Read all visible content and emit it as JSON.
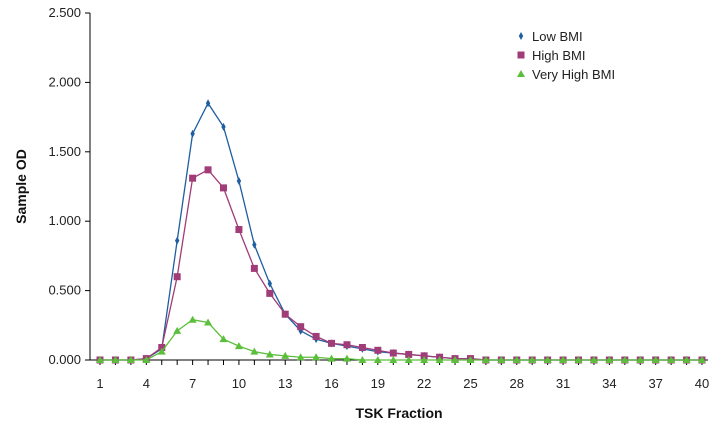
{
  "chart_data": {
    "type": "line",
    "title": "",
    "xlabel": "TSK Fraction",
    "ylabel": "Sample OD",
    "x": [
      1,
      2,
      3,
      4,
      5,
      6,
      7,
      8,
      9,
      10,
      11,
      12,
      13,
      14,
      15,
      16,
      17,
      18,
      19,
      20,
      21,
      22,
      23,
      24,
      25,
      26,
      27,
      28,
      29,
      30,
      31,
      32,
      33,
      34,
      35,
      36,
      37,
      38,
      39,
      40
    ],
    "x_tick_labels": [
      "1",
      "4",
      "7",
      "10",
      "13",
      "16",
      "19",
      "22",
      "25",
      "28",
      "31",
      "34",
      "37",
      "40"
    ],
    "y_tick_labels": [
      "0.000",
      "0.500",
      "1.000",
      "1.500",
      "2.000",
      "2.500"
    ],
    "ylim": [
      0,
      2.5
    ],
    "grid": false,
    "legend_position": "top-right",
    "series": [
      {
        "name": "Low BMI",
        "color": "#1f5fa0",
        "marker": "diamond",
        "values": [
          0.0,
          0.0,
          0.0,
          0.01,
          0.08,
          0.86,
          1.63,
          1.85,
          1.68,
          1.29,
          0.83,
          0.55,
          0.33,
          0.21,
          0.15,
          0.12,
          0.1,
          0.08,
          0.06,
          0.05,
          0.04,
          0.03,
          0.02,
          0.01,
          0.01,
          0.0,
          0.0,
          0.0,
          0.0,
          0.0,
          0.0,
          0.0,
          0.0,
          0.0,
          0.0,
          0.0,
          0.0,
          0.0,
          0.0,
          0.0
        ]
      },
      {
        "name": "High BMI",
        "color": "#a03c78",
        "marker": "square",
        "values": [
          0.0,
          0.0,
          0.0,
          0.01,
          0.09,
          0.6,
          1.31,
          1.37,
          1.24,
          0.94,
          0.66,
          0.48,
          0.33,
          0.24,
          0.17,
          0.12,
          0.11,
          0.09,
          0.07,
          0.05,
          0.04,
          0.03,
          0.02,
          0.01,
          0.01,
          0.0,
          0.0,
          0.0,
          0.0,
          0.0,
          0.0,
          0.0,
          0.0,
          0.0,
          0.0,
          0.0,
          0.0,
          0.0,
          0.0,
          0.0
        ]
      },
      {
        "name": "Very High BMI",
        "color": "#5cbf3c",
        "marker": "triangle",
        "values": [
          0.0,
          0.0,
          0.0,
          0.0,
          0.06,
          0.21,
          0.29,
          0.27,
          0.15,
          0.1,
          0.06,
          0.04,
          0.03,
          0.02,
          0.02,
          0.01,
          0.01,
          0.0,
          0.0,
          0.0,
          0.0,
          0.0,
          0.0,
          0.0,
          0.0,
          0.0,
          0.0,
          0.0,
          0.0,
          0.0,
          0.0,
          0.0,
          0.0,
          0.0,
          0.0,
          0.0,
          0.0,
          0.0,
          0.0,
          0.0
        ]
      }
    ]
  }
}
